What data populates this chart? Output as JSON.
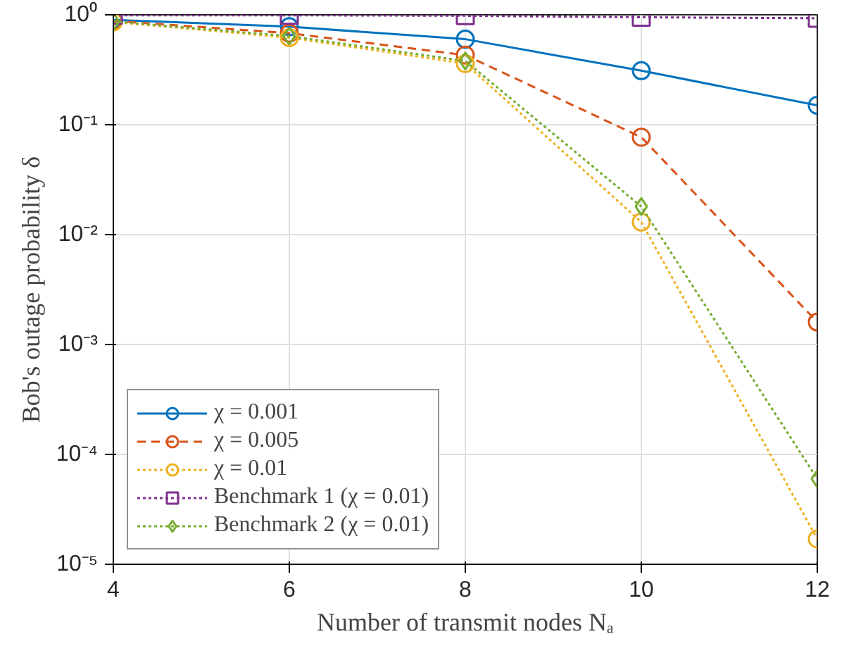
{
  "chart_data": {
    "type": "line",
    "xlabel": "Number of transmit nodes Nₐ",
    "ylabel": "Bob's outage probability δ",
    "x": [
      4,
      6,
      8,
      10,
      12
    ],
    "series": [
      {
        "name": "χ = 0.001",
        "color": "#0072bd",
        "marker": "circle",
        "line_style": "solid",
        "values": [
          0.9,
          0.78,
          0.6,
          0.31,
          0.15
        ]
      },
      {
        "name": "χ = 0.005",
        "color": "#d95319",
        "marker": "circle",
        "line_style": "dashed",
        "values": [
          0.88,
          0.68,
          0.43,
          0.077,
          0.0016
        ]
      },
      {
        "name": "χ = 0.01",
        "color": "#edb120",
        "marker": "circle",
        "line_style": "dotted",
        "values": [
          0.86,
          0.62,
          0.36,
          0.013,
          1.7e-05
        ]
      },
      {
        "name": "Benchmark 1 (χ = 0.01)",
        "color": "#7e2f8e",
        "marker": "square",
        "line_style": "dotted",
        "values": [
          0.99,
          0.99,
          0.98,
          0.95,
          0.93
        ]
      },
      {
        "name": "Benchmark 2 (χ = 0.01)",
        "color": "#77ac30",
        "marker": "diamond",
        "line_style": "dotted",
        "values": [
          0.87,
          0.64,
          0.38,
          0.018,
          6e-05
        ]
      }
    ],
    "xlim": [
      4,
      12
    ],
    "xticks": [
      4,
      6,
      8,
      10,
      12
    ],
    "ylim": [
      1e-05,
      1
    ],
    "yticks": [
      {
        "value": 1e-05,
        "label": "10⁻⁵"
      },
      {
        "value": 0.0001,
        "label": "10⁻⁴"
      },
      {
        "value": 0.001,
        "label": "10⁻³"
      },
      {
        "value": 0.01,
        "label": "10⁻²"
      },
      {
        "value": 0.1,
        "label": "10⁻¹"
      },
      {
        "value": 1,
        "label": "10⁰"
      }
    ],
    "log": "y",
    "grid": true,
    "legend": "bottom left"
  }
}
